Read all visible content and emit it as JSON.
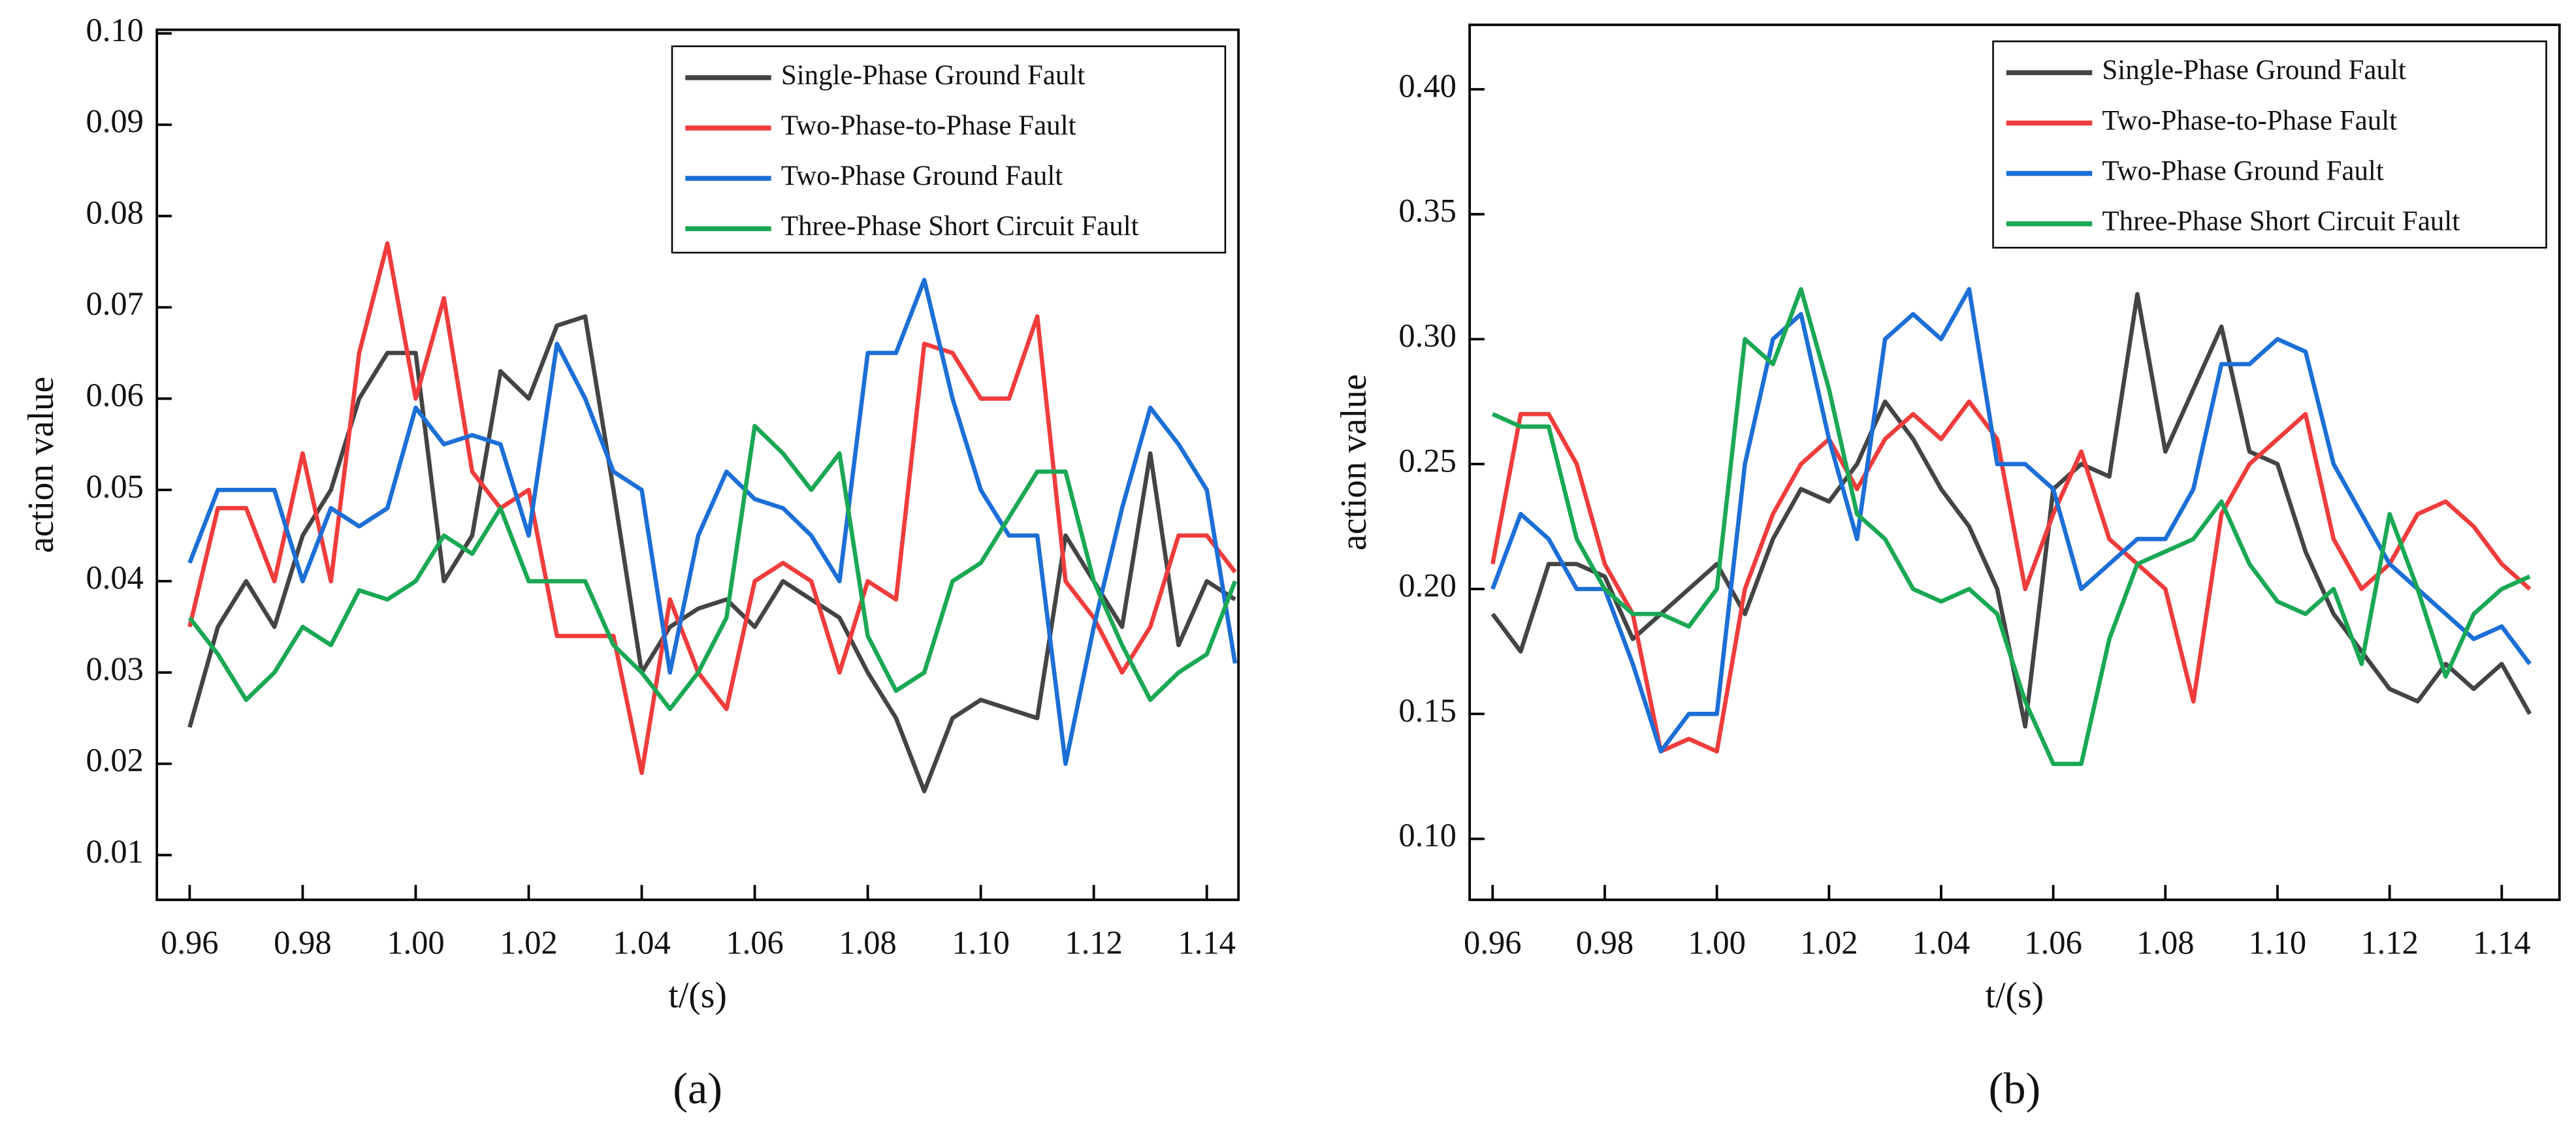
{
  "chart_data": [
    {
      "type": "line",
      "caption": "(a)",
      "x_label": "t/(s)",
      "y_label": "action value",
      "x": [
        0.96,
        0.965,
        0.97,
        0.975,
        0.98,
        0.985,
        0.99,
        0.995,
        1.0,
        1.005,
        1.01,
        1.015,
        1.02,
        1.025,
        1.03,
        1.035,
        1.04,
        1.045,
        1.05,
        1.055,
        1.06,
        1.065,
        1.07,
        1.075,
        1.08,
        1.085,
        1.09,
        1.095,
        1.1,
        1.105,
        1.11,
        1.115,
        1.12,
        1.125,
        1.13,
        1.135,
        1.14,
        1.145
      ],
      "xlim": [
        0.9542,
        1.1456
      ],
      "xticks": [
        0.96,
        0.98,
        {
          "value": 1,
          "label": "1.00"
        },
        1.02,
        1.04,
        1.06,
        1.08,
        {
          "value": 1.1,
          "label": "1.10"
        },
        1.12,
        1.14
      ],
      "ylim": [
        0.0051,
        0.1004
      ],
      "yticks": [
        0.01,
        0.02,
        0.03,
        0.04,
        0.05,
        0.06,
        0.07,
        0.08,
        0.09,
        {
          "value": 0.1,
          "label": "0.10"
        }
      ],
      "legend": "upper right",
      "series": [
        {
          "name": "Single-Phase Ground Fault",
          "color": "#444444",
          "values": [
            0.024,
            0.035,
            0.04,
            0.035,
            0.045,
            0.05,
            0.06,
            0.065,
            0.065,
            0.04,
            0.045,
            0.063,
            0.06,
            0.068,
            0.069,
            0.05,
            0.03,
            0.035,
            0.037,
            0.038,
            0.035,
            0.04,
            0.038,
            0.036,
            0.03,
            0.025,
            0.017,
            0.025,
            0.027,
            0.026,
            0.025,
            0.045,
            0.04,
            0.035,
            0.054,
            0.033,
            0.04,
            0.038
          ]
        },
        {
          "name": "Two-Phase-to-Phase Fault",
          "color": "#f03c3c",
          "values": [
            0.035,
            0.048,
            0.048,
            0.04,
            0.054,
            0.04,
            0.065,
            0.077,
            0.06,
            0.071,
            0.052,
            0.048,
            0.05,
            0.034,
            0.034,
            0.034,
            0.019,
            0.038,
            0.03,
            0.026,
            0.04,
            0.042,
            0.04,
            0.03,
            0.04,
            0.038,
            0.066,
            0.065,
            0.06,
            0.06,
            0.069,
            0.04,
            0.036,
            0.03,
            0.035,
            0.045,
            0.045,
            0.041
          ]
        },
        {
          "name": "Two-Phase Ground Fault",
          "color": "#1c6fd6",
          "values": [
            0.042,
            0.05,
            0.05,
            0.05,
            0.04,
            0.048,
            0.046,
            0.048,
            0.059,
            0.055,
            0.056,
            0.055,
            0.045,
            0.066,
            0.06,
            0.052,
            0.05,
            0.03,
            0.045,
            0.052,
            0.049,
            0.048,
            0.045,
            0.04,
            0.065,
            0.065,
            0.073,
            0.06,
            0.05,
            0.045,
            0.045,
            0.02,
            0.035,
            0.048,
            0.059,
            0.055,
            0.05,
            0.031
          ]
        },
        {
          "name": "Three-Phase Short Circuit Fault",
          "color": "#1aa855",
          "values": [
            0.036,
            0.032,
            0.027,
            0.03,
            0.035,
            0.033,
            0.039,
            0.038,
            0.04,
            0.045,
            0.043,
            0.048,
            0.04,
            0.04,
            0.04,
            0.033,
            0.03,
            0.026,
            0.03,
            0.036,
            0.057,
            0.054,
            0.05,
            0.054,
            0.034,
            0.028,
            0.03,
            0.04,
            0.042,
            0.047,
            0.052,
            0.052,
            0.04,
            0.033,
            0.027,
            0.03,
            0.032,
            0.04
          ]
        }
      ]
    },
    {
      "type": "line",
      "caption": "(b)",
      "x_label": "t/(s)",
      "y_label": "action value",
      "x": [
        0.96,
        0.965,
        0.97,
        0.975,
        0.98,
        0.985,
        0.99,
        0.995,
        1.0,
        1.005,
        1.01,
        1.015,
        1.02,
        1.025,
        1.03,
        1.035,
        1.04,
        1.045,
        1.05,
        1.055,
        1.06,
        1.065,
        1.07,
        1.075,
        1.08,
        1.085,
        1.09,
        1.095,
        1.1,
        1.105,
        1.11,
        1.115,
        1.12,
        1.125,
        1.13,
        1.135,
        1.14,
        1.145
      ],
      "xlim": [
        0.9559,
        1.1503
      ],
      "xticks": [
        0.96,
        0.98,
        {
          "value": 1,
          "label": "1.00"
        },
        1.02,
        1.04,
        1.06,
        1.08,
        {
          "value": 1.1,
          "label": "1.10"
        },
        1.12,
        1.14
      ],
      "ylim": [
        0.0756,
        0.4258
      ],
      "yticks": [
        {
          "value": 0.1,
          "label": "0.10"
        },
        0.15,
        {
          "value": 0.2,
          "label": "0.20"
        },
        0.25,
        {
          "value": 0.3,
          "label": "0.30"
        },
        0.35,
        {
          "value": 0.4,
          "label": "0.40"
        }
      ],
      "legend": "upper right",
      "series": [
        {
          "name": "Single-Phase Ground Fault",
          "color": "#444444",
          "values": [
            0.19,
            0.175,
            0.21,
            0.21,
            0.205,
            0.18,
            0.19,
            0.2,
            0.21,
            0.19,
            0.22,
            0.24,
            0.235,
            0.25,
            0.275,
            0.26,
            0.24,
            0.225,
            0.2,
            0.145,
            0.24,
            0.25,
            0.245,
            0.318,
            0.255,
            0.28,
            0.305,
            0.255,
            0.25,
            0.215,
            0.19,
            0.175,
            0.16,
            0.155,
            0.17,
            0.16,
            0.17,
            0.15
          ]
        },
        {
          "name": "Two-Phase-to-Phase Fault",
          "color": "#f03c3c",
          "values": [
            0.21,
            0.27,
            0.27,
            0.25,
            0.21,
            0.19,
            0.135,
            0.14,
            0.135,
            0.2,
            0.23,
            0.25,
            0.26,
            0.24,
            0.26,
            0.27,
            0.26,
            0.275,
            0.26,
            0.2,
            0.23,
            0.255,
            0.22,
            0.21,
            0.2,
            0.155,
            0.23,
            0.25,
            0.26,
            0.27,
            0.22,
            0.2,
            0.21,
            0.23,
            0.235,
            0.225,
            0.21,
            0.2
          ]
        },
        {
          "name": "Two-Phase Ground Fault",
          "color": "#1c6fd6",
          "values": [
            0.2,
            0.23,
            0.22,
            0.2,
            0.2,
            0.17,
            0.135,
            0.15,
            0.15,
            0.25,
            0.3,
            0.31,
            0.26,
            0.22,
            0.3,
            0.31,
            0.3,
            0.32,
            0.25,
            0.25,
            0.24,
            0.2,
            0.21,
            0.22,
            0.22,
            0.24,
            0.29,
            0.29,
            0.3,
            0.295,
            0.25,
            0.23,
            0.21,
            0.2,
            0.19,
            0.18,
            0.185,
            0.17
          ]
        },
        {
          "name": "Three-Phase Short Circuit Fault",
          "color": "#1aa855",
          "values": [
            0.27,
            0.265,
            0.265,
            0.22,
            0.2,
            0.19,
            0.19,
            0.185,
            0.2,
            0.3,
            0.29,
            0.32,
            0.28,
            0.23,
            0.22,
            0.2,
            0.195,
            0.2,
            0.19,
            0.155,
            0.13,
            0.13,
            0.18,
            0.21,
            0.215,
            0.22,
            0.235,
            0.21,
            0.195,
            0.19,
            0.2,
            0.17,
            0.23,
            0.2,
            0.165,
            0.19,
            0.2,
            0.205
          ]
        }
      ]
    }
  ]
}
